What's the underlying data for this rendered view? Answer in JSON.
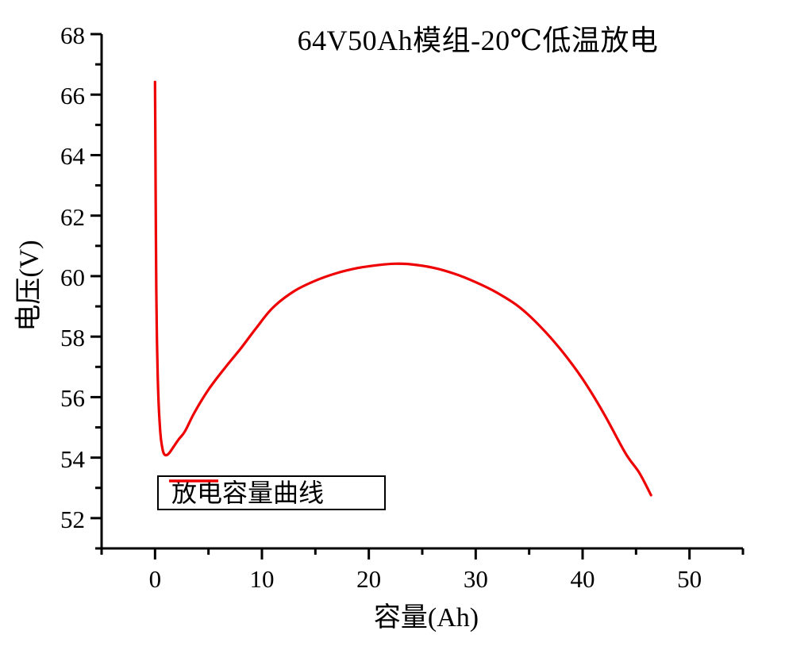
{
  "chart_data": {
    "type": "line",
    "title": "64V50Ah模组-20℃低温放电",
    "xlabel": "容量(Ah)",
    "ylabel": "电压(V)",
    "xlim": [
      -5,
      55
    ],
    "ylim": [
      51,
      68
    ],
    "x_major_ticks": [
      0,
      10,
      20,
      30,
      40,
      50
    ],
    "x_minor_ticks": [
      -5,
      5,
      15,
      25,
      35,
      45,
      55
    ],
    "y_major_ticks": [
      52,
      54,
      56,
      58,
      60,
      62,
      64,
      66,
      68
    ],
    "y_minor_ticks": [
      51,
      53,
      55,
      57,
      59,
      61,
      63,
      65,
      67
    ],
    "grid": false,
    "legend": {
      "position": "lower-left",
      "entries": [
        {
          "label": "放电容量曲线",
          "color": "#ee0000"
        }
      ]
    },
    "series": [
      {
        "name": "放电容量曲线",
        "color": "#ee0000",
        "points": [
          [
            0,
            66.42
          ],
          [
            0.02,
            65.2
          ],
          [
            0.05,
            63.2
          ],
          [
            0.08,
            61.4
          ],
          [
            0.12,
            59.6
          ],
          [
            0.17,
            58.1
          ],
          [
            0.25,
            56.7
          ],
          [
            0.35,
            55.7
          ],
          [
            0.5,
            54.8
          ],
          [
            0.65,
            54.38
          ],
          [
            0.8,
            54.15
          ],
          [
            1.0,
            54.08
          ],
          [
            1.3,
            54.14
          ],
          [
            1.7,
            54.34
          ],
          [
            2.2,
            54.6
          ],
          [
            2.8,
            54.87
          ],
          [
            3.7,
            55.5
          ],
          [
            5,
            56.25
          ],
          [
            6.5,
            56.95
          ],
          [
            8,
            57.6
          ],
          [
            9.5,
            58.3
          ],
          [
            11,
            58.95
          ],
          [
            13,
            59.5
          ],
          [
            15,
            59.85
          ],
          [
            17,
            60.1
          ],
          [
            19,
            60.27
          ],
          [
            21,
            60.37
          ],
          [
            22.5,
            60.41
          ],
          [
            24,
            60.39
          ],
          [
            26,
            60.28
          ],
          [
            28,
            60.08
          ],
          [
            30,
            59.8
          ],
          [
            32,
            59.45
          ],
          [
            34,
            59.0
          ],
          [
            36,
            58.35
          ],
          [
            38,
            57.55
          ],
          [
            40,
            56.6
          ],
          [
            42,
            55.45
          ],
          [
            44,
            54.15
          ],
          [
            45.3,
            53.5
          ],
          [
            46.4,
            52.76
          ]
        ]
      }
    ]
  },
  "colors": {
    "curve": "#ee0000",
    "axis": "#000000",
    "text": "#000000",
    "background": "#ffffff"
  }
}
